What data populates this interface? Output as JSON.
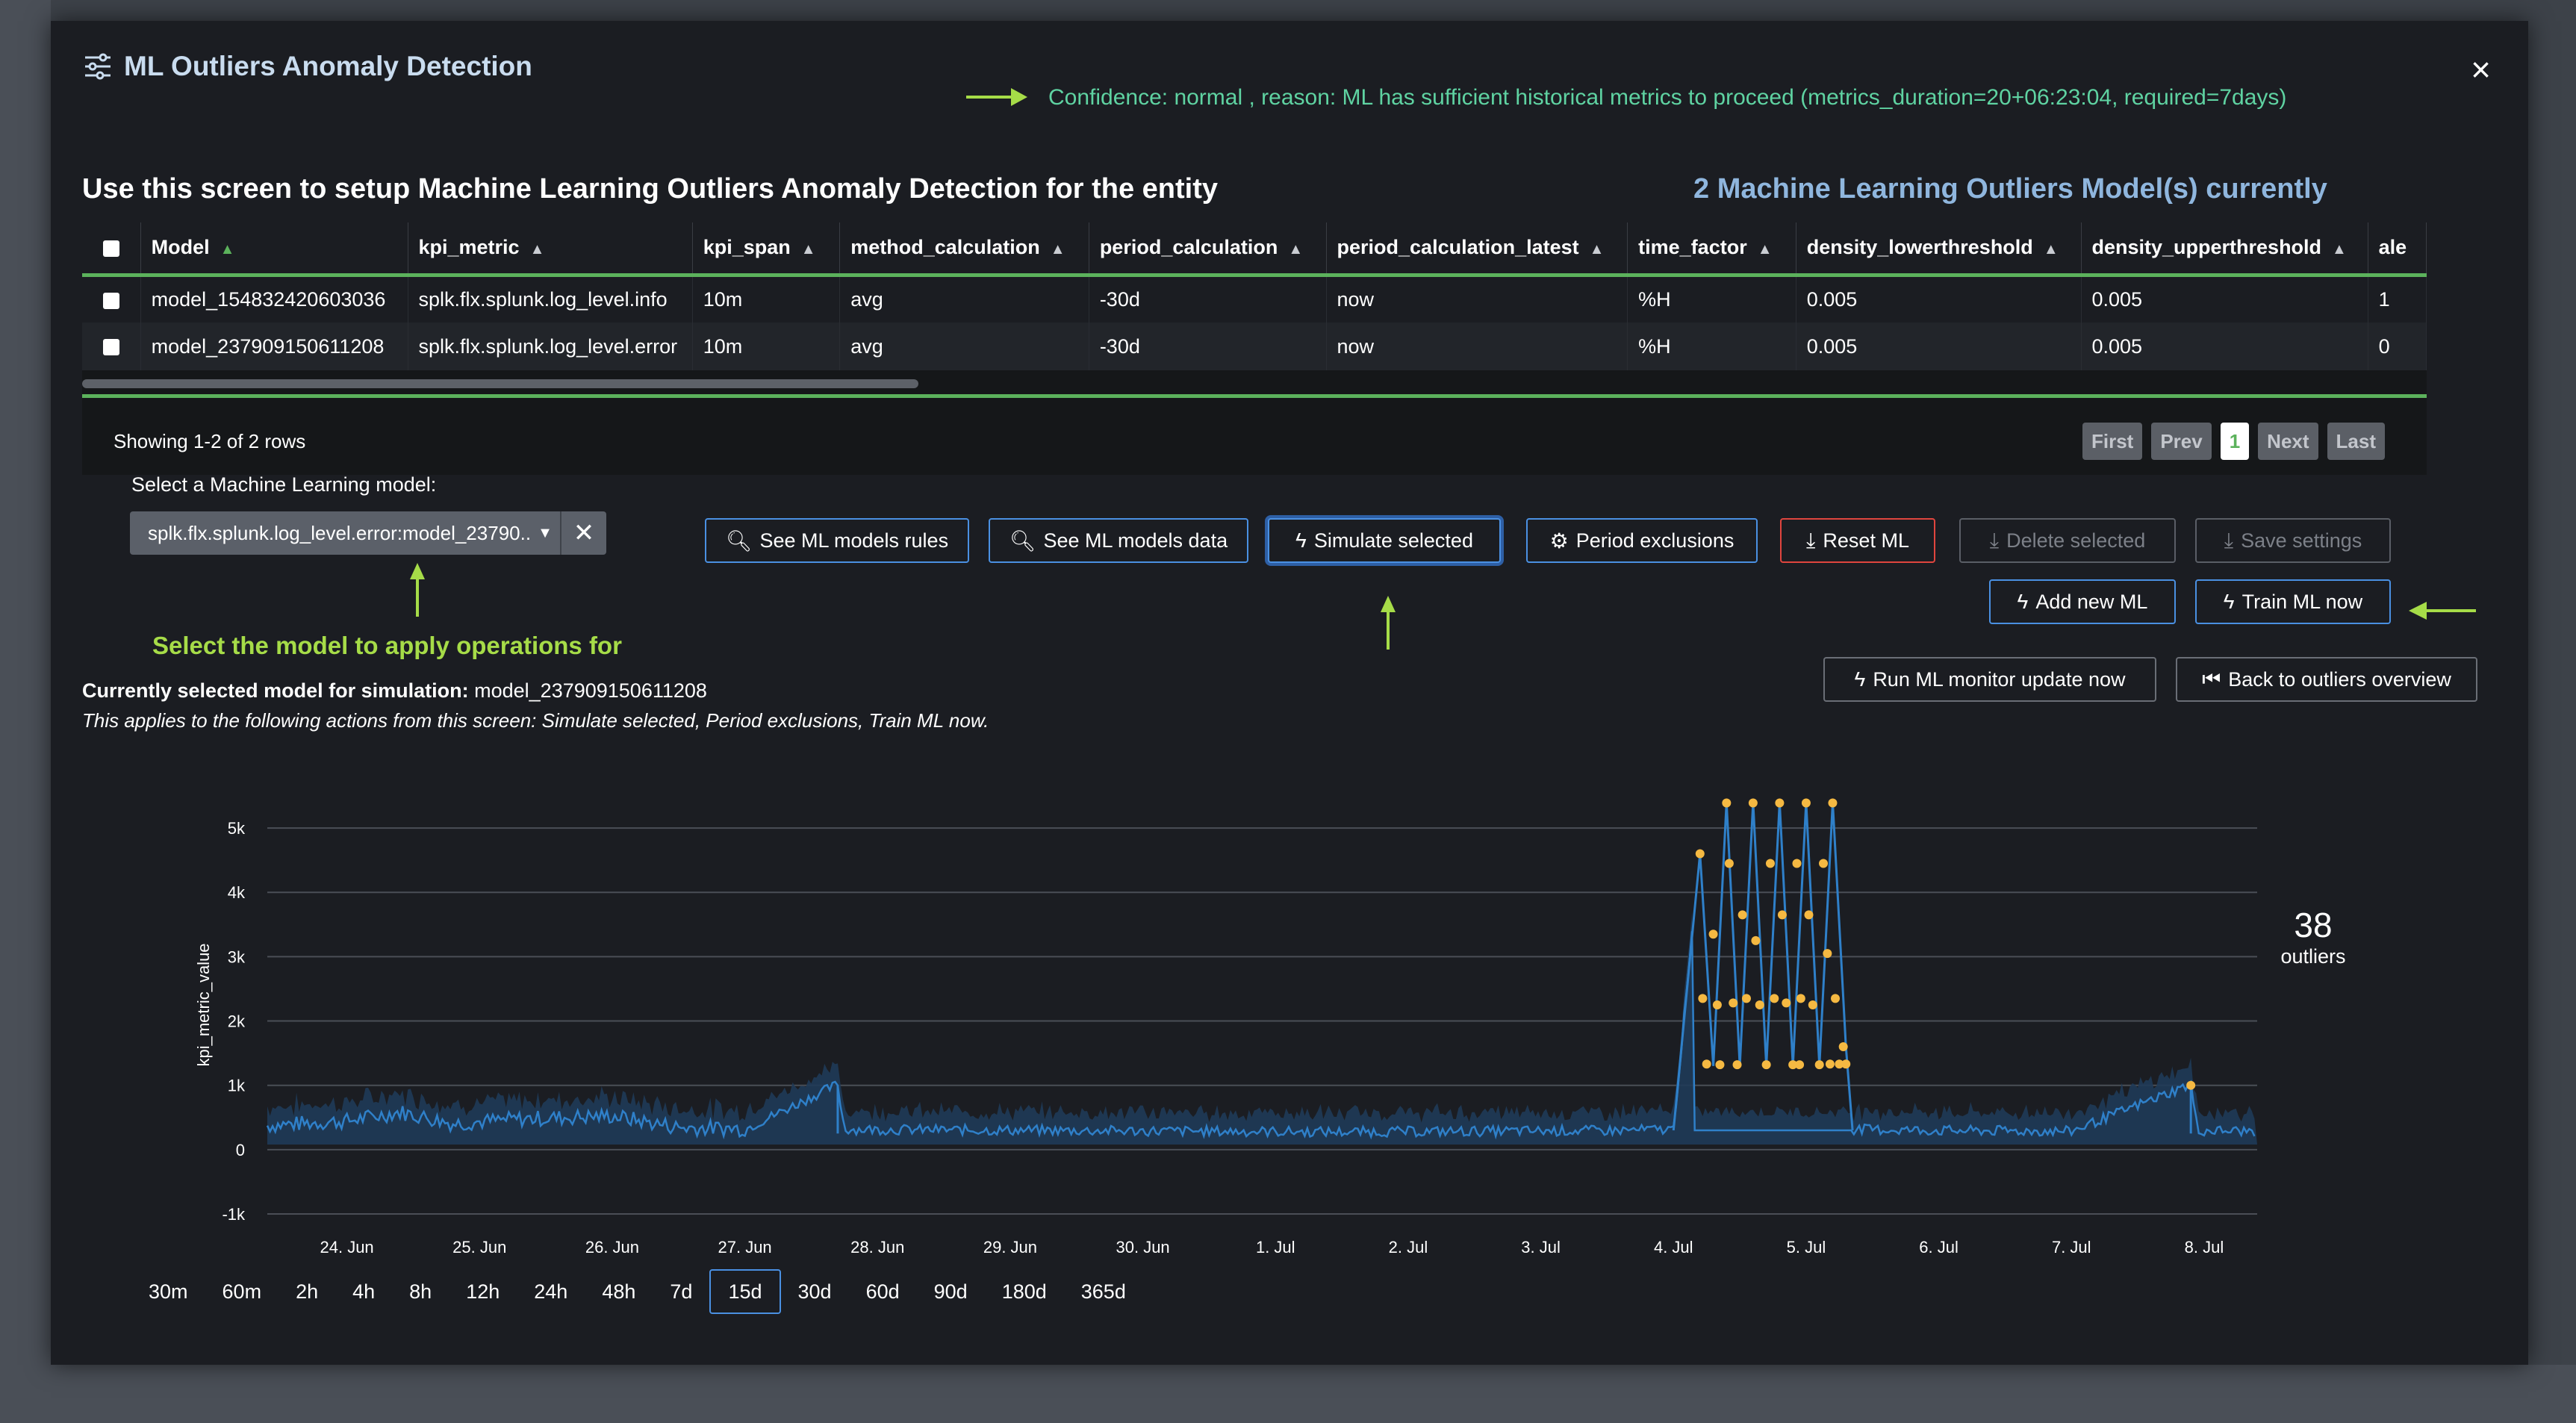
{
  "header": {
    "title": "ML Outliers Anomaly Detection",
    "confidence": "Confidence: normal , reason: ML has sufficient historical metrics to proceed (metrics_duration=20+06:23:04, required=7days)",
    "close_label": "×"
  },
  "intro": {
    "setup_title": "Use this screen to setup Machine Learning Outliers Anomaly Detection for the entity",
    "model_count": "2 Machine Learning Outliers Model(s) currently"
  },
  "table": {
    "columns": [
      "Model",
      "kpi_metric",
      "kpi_span",
      "method_calculation",
      "period_calculation",
      "period_calculation_latest",
      "time_factor",
      "density_lowerthreshold",
      "density_upperthreshold",
      "ale"
    ],
    "rows": [
      [
        "model_154832420603036",
        "splk.flx.splunk.log_level.info",
        "10m",
        "avg",
        "-30d",
        "now",
        "%H",
        "0.005",
        "0.005",
        "1"
      ],
      [
        "model_237909150611208",
        "splk.flx.splunk.log_level.error",
        "10m",
        "avg",
        "-30d",
        "now",
        "%H",
        "0.005",
        "0.005",
        "0"
      ]
    ],
    "showing": "Showing 1-2 of 2 rows",
    "pager": {
      "first": "First",
      "prev": "Prev",
      "page": "1",
      "next": "Next",
      "last": "Last"
    }
  },
  "selector": {
    "label": "Select a Machine Learning model:",
    "value": "splk.flx.splunk.log_level.error:model_23790...",
    "hint": "Select the model to apply operations for"
  },
  "buttons": {
    "see_rules": "See ML models rules",
    "see_data": "See ML models data",
    "simulate": "Simulate selected",
    "period_exclusions": "Period exclusions",
    "reset": "Reset ML",
    "delete": "Delete selected",
    "save": "Save settings",
    "add_new": "Add new ML",
    "train": "Train ML now",
    "run_monitor": "Run ML monitor update now",
    "back": "Back to outliers overview"
  },
  "simulation": {
    "current_label": "Currently selected model for simulation:",
    "current_value": "model_237909150611208",
    "applies": "This applies to the following actions from this screen: Simulate selected, Period exclusions, Train ML now."
  },
  "outliers": {
    "count": "38",
    "label": "outliers"
  },
  "time_ranges": [
    "30m",
    "60m",
    "2h",
    "4h",
    "8h",
    "12h",
    "24h",
    "48h",
    "7d",
    "15d",
    "30d",
    "60d",
    "90d",
    "180d",
    "365d"
  ],
  "time_range_selected": "15d",
  "colors": {
    "accent": "#4a90e2",
    "green": "#5cb25c",
    "hint": "#a6dc48",
    "confidence": "#5fd3a2",
    "outlier": "#f5b942",
    "series": "#2f80c9"
  },
  "chart_data": {
    "type": "line",
    "ylabel": "kpi_metric_value",
    "ylim": [
      -1000,
      5500
    ],
    "yticks": [
      "5k",
      "4k",
      "3k",
      "2k",
      "1k",
      "0",
      "-1k"
    ],
    "xticks": [
      "24. Jun",
      "25. Jun",
      "26. Jun",
      "27. Jun",
      "28. Jun",
      "29. Jun",
      "30. Jun",
      "1. Jul",
      "2. Jul",
      "3. Jul",
      "4. Jul",
      "5. Jul",
      "6. Jul",
      "7. Jul",
      "8. Jul"
    ],
    "grid": true,
    "x_start_day": 23.4,
    "x_end_day": 38.4,
    "baseline": [
      [
        23.4,
        350
      ],
      [
        24.0,
        420
      ],
      [
        24.4,
        560
      ],
      [
        24.8,
        380
      ],
      [
        25.3,
        450
      ],
      [
        26.0,
        500
      ],
      [
        26.5,
        320
      ],
      [
        27.0,
        300
      ],
      [
        27.7,
        1000
      ],
      [
        27.75,
        300
      ],
      [
        28.5,
        290
      ],
      [
        29.5,
        280
      ],
      [
        30.5,
        270
      ],
      [
        31.5,
        260
      ],
      [
        32.5,
        270
      ],
      [
        33.5,
        280
      ],
      [
        34.0,
        300
      ],
      [
        34.2,
        4600
      ],
      [
        34.3,
        1300
      ],
      [
        34.4,
        5400
      ],
      [
        34.5,
        1300
      ],
      [
        34.6,
        5400
      ],
      [
        34.7,
        1300
      ],
      [
        34.8,
        5400
      ],
      [
        34.9,
        1300
      ],
      [
        35.0,
        5400
      ],
      [
        35.1,
        1300
      ],
      [
        35.2,
        5400
      ],
      [
        35.3,
        1600
      ],
      [
        35.35,
        300
      ],
      [
        36.0,
        280
      ],
      [
        37.0,
        270
      ],
      [
        37.9,
        1000
      ],
      [
        37.95,
        280
      ],
      [
        38.4,
        270
      ]
    ],
    "outlier_points": [
      [
        34.2,
        4600
      ],
      [
        34.22,
        2350
      ],
      [
        34.25,
        1330
      ],
      [
        34.3,
        3350
      ],
      [
        34.33,
        2250
      ],
      [
        34.4,
        5390
      ],
      [
        34.42,
        4450
      ],
      [
        34.45,
        2280
      ],
      [
        34.48,
        1320
      ],
      [
        34.52,
        3650
      ],
      [
        34.55,
        2350
      ],
      [
        34.6,
        5390
      ],
      [
        34.62,
        3250
      ],
      [
        34.65,
        2250
      ],
      [
        34.7,
        1320
      ],
      [
        34.73,
        4450
      ],
      [
        34.76,
        2350
      ],
      [
        34.8,
        5390
      ],
      [
        34.82,
        3650
      ],
      [
        34.85,
        2280
      ],
      [
        34.9,
        1320
      ],
      [
        34.93,
        4450
      ],
      [
        34.96,
        2350
      ],
      [
        35.0,
        5390
      ],
      [
        35.02,
        3650
      ],
      [
        35.05,
        2250
      ],
      [
        35.1,
        1320
      ],
      [
        35.13,
        4450
      ],
      [
        35.16,
        3050
      ],
      [
        35.2,
        5390
      ],
      [
        35.22,
        2350
      ],
      [
        35.25,
        1330
      ],
      [
        35.28,
        1600
      ],
      [
        35.3,
        1330
      ],
      [
        37.9,
        1000
      ],
      [
        34.35,
        1320
      ],
      [
        34.95,
        1320
      ],
      [
        35.18,
        1330
      ]
    ]
  }
}
